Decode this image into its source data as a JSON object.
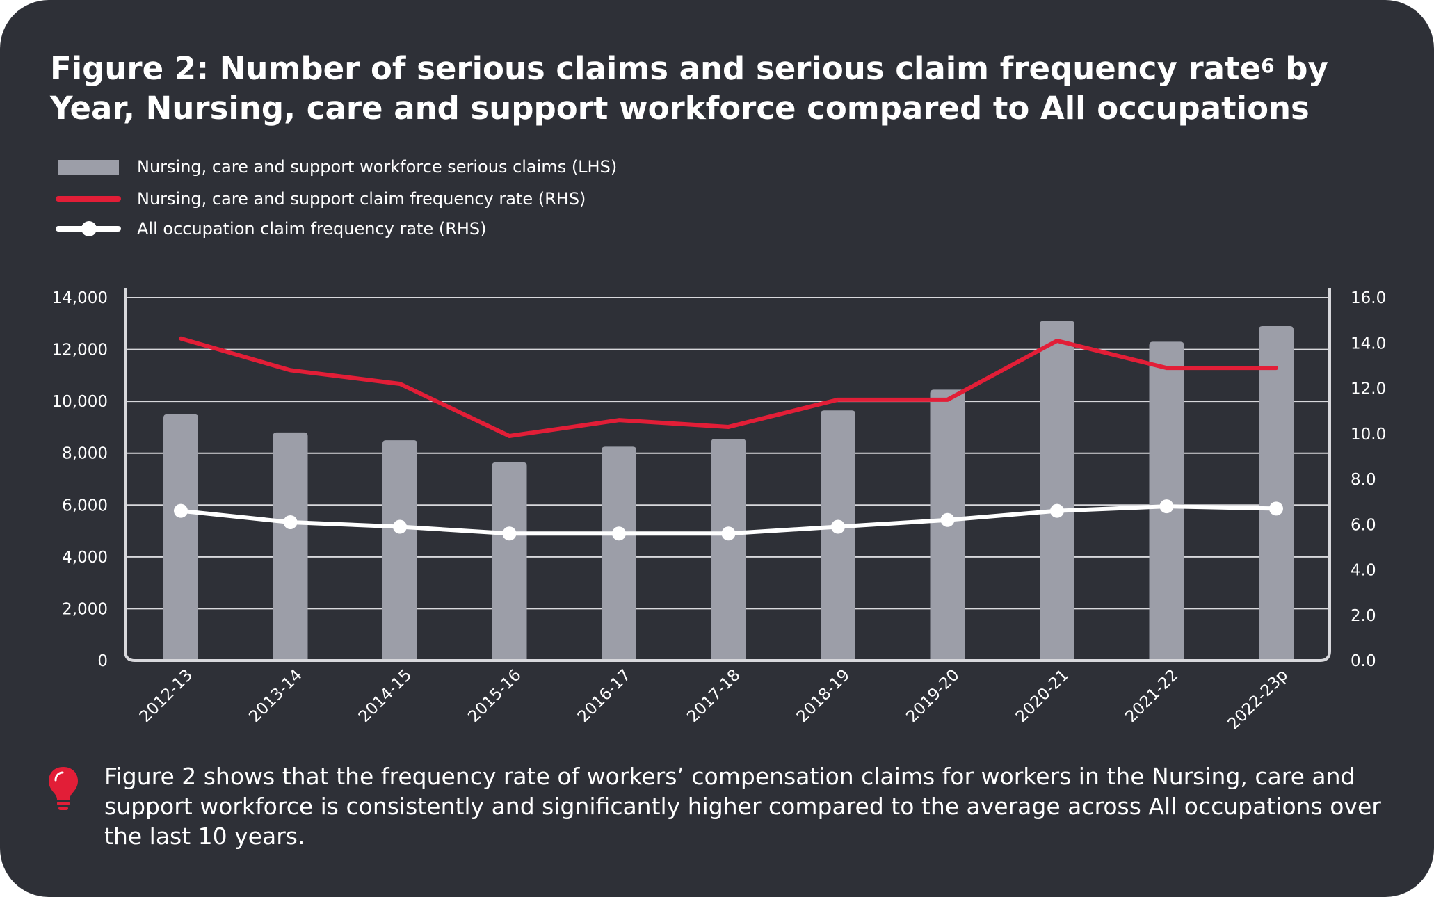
{
  "title_line": "Figure 2: Number of serious claims and serious claim frequency rate",
  "title_superscript": "6",
  "title_line_tail": " by Year, Nursing, care and support workforce compared to All occupations",
  "legend": [
    {
      "label": "Nursing, care and support workforce serious claims (LHS)",
      "kind": "bar"
    },
    {
      "label": "Nursing, care and support claim frequency rate (RHS)",
      "kind": "red-line"
    },
    {
      "label": "All occupation claim frequency rate (RHS)",
      "kind": "white-line-dot"
    }
  ],
  "note": "Figure 2 shows that the frequency rate of workers’ compensation claims for workers in the Nursing, care and support workforce is consistently and significantly higher compared to the average across All occupations over the last 10 years.",
  "icon": "lightbulb-icon",
  "colors": {
    "background": "#2e3037",
    "bar": "#9c9ea8",
    "red": "#e21e37",
    "white": "#ffffff",
    "grid": "#d8d8dc"
  },
  "chart_data": {
    "type": "bar",
    "title": "Figure 2: Number of serious claims and serious claim frequency rate by Year, Nursing, care and support workforce compared to All occupations",
    "categories": [
      "2012-13",
      "2013-14",
      "2014-15",
      "2015-16",
      "2016-17",
      "2017-18",
      "2018-19",
      "2019-20",
      "2020-21",
      "2021-22",
      "2022-23p"
    ],
    "series": [
      {
        "name": "Nursing, care and support workforce serious claims (LHS)",
        "type": "bar",
        "axis": "left",
        "values": [
          9500,
          8800,
          8500,
          7650,
          8250,
          8550,
          9650,
          10450,
          13100,
          12300,
          12900
        ]
      },
      {
        "name": "Nursing, care and support claim frequency rate (RHS)",
        "type": "line",
        "axis": "right",
        "values": [
          14.2,
          12.8,
          12.2,
          9.9,
          10.6,
          10.3,
          11.5,
          11.5,
          14.1,
          12.9,
          12.9
        ]
      },
      {
        "name": "All occupation claim frequency rate (RHS)",
        "type": "line",
        "axis": "right",
        "markers": true,
        "values": [
          6.6,
          6.1,
          5.9,
          5.6,
          5.6,
          5.6,
          5.9,
          6.2,
          6.6,
          6.8,
          6.7
        ]
      }
    ],
    "left_axis": {
      "ylim": [
        0,
        14000
      ],
      "ticks": [
        0,
        2000,
        4000,
        6000,
        8000,
        10000,
        12000,
        14000
      ],
      "tick_labels": [
        "0",
        "2,000",
        "4,000",
        "6,000",
        "8,000",
        "10,000",
        "12,000",
        "14,000"
      ]
    },
    "right_axis": {
      "ylim": [
        0,
        16
      ],
      "ticks": [
        0,
        2,
        4,
        6,
        8,
        10,
        12,
        14,
        16
      ],
      "tick_labels": [
        "0.0",
        "2.0",
        "4.0",
        "6.0",
        "8.0",
        "10.0",
        "12.0",
        "14.0",
        "16.0"
      ]
    },
    "grid": true,
    "xlabel": "",
    "ylabel": ""
  }
}
